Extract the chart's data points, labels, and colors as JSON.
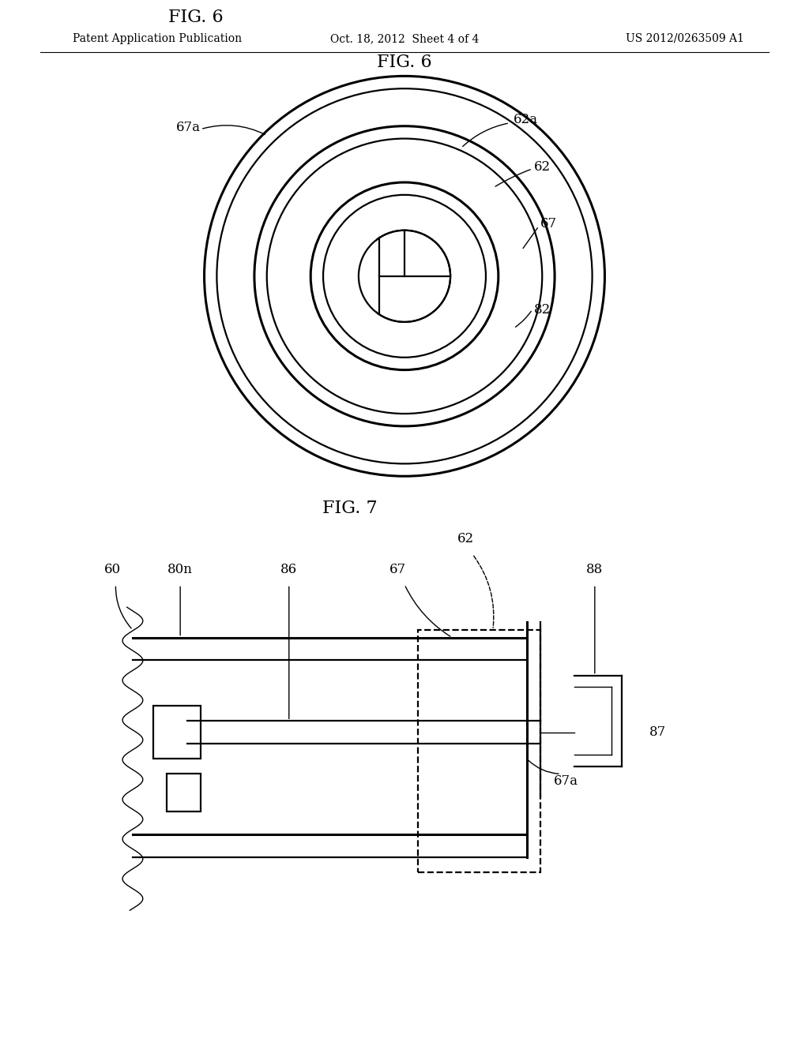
{
  "background_color": "#ffffff",
  "fig_width": 10.24,
  "fig_height": 13.2,
  "header_left": "Patent Application Publication",
  "header_center": "Oct. 18, 2012  Sheet 4 of 4",
  "header_right": "US 2012/0263509 A1",
  "fig6_title": "FIG. 6",
  "fig7_title": "FIG. 7",
  "line_color": "#000000",
  "lw_thick": 2.2,
  "lw_medium": 1.6,
  "lw_thin": 1.0,
  "font_size_label": 12,
  "font_size_title": 16,
  "font_size_header": 10
}
